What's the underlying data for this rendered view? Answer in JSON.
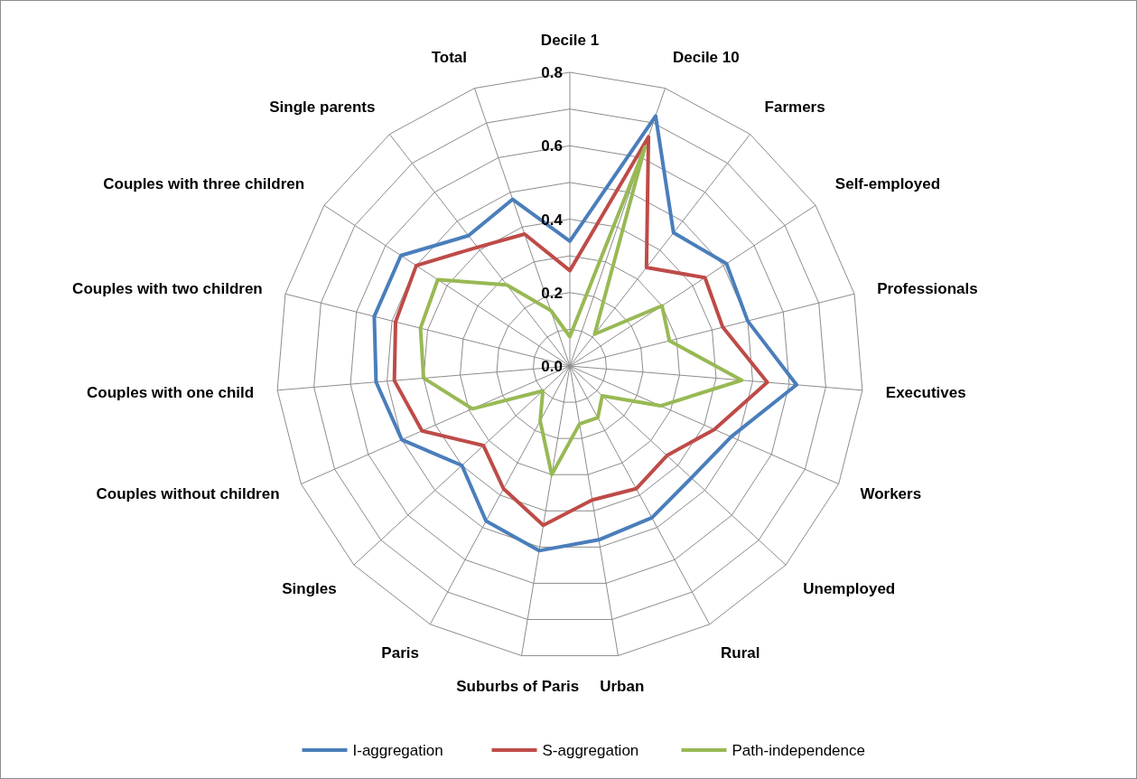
{
  "chart_data": {
    "type": "radar",
    "categories": [
      "Decile 1",
      "Decile 10",
      "Farmers",
      "Self-employed",
      "Professionals",
      "Executives",
      "Workers",
      "Unemployed",
      "Rural",
      "Urban",
      "Suburbs of Paris",
      "Paris",
      "Singles",
      "Couples without children",
      "Couples with one child",
      "Couples with two children",
      "Couples with three children",
      "Single parents",
      "Total"
    ],
    "series": [
      {
        "name": "I-aggregation",
        "color": "#4a7ebb",
        "values": [
          0.34,
          0.72,
          0.46,
          0.51,
          0.5,
          0.62,
          0.48,
          0.45,
          0.47,
          0.48,
          0.51,
          0.48,
          0.4,
          0.5,
          0.53,
          0.55,
          0.55,
          0.45,
          0.48
        ]
      },
      {
        "name": "S-aggregation",
        "color": "#be4b48",
        "values": [
          0.26,
          0.66,
          0.34,
          0.44,
          0.43,
          0.54,
          0.43,
          0.36,
          0.38,
          0.37,
          0.44,
          0.38,
          0.32,
          0.44,
          0.48,
          0.49,
          0.5,
          0.41,
          0.38
        ]
      },
      {
        "name": "Path-independence",
        "color": "#98b954",
        "values": [
          0.08,
          0.63,
          0.11,
          0.3,
          0.28,
          0.47,
          0.27,
          0.12,
          0.16,
          0.16,
          0.3,
          0.17,
          0.1,
          0.29,
          0.4,
          0.42,
          0.43,
          0.28,
          0.16
        ]
      }
    ],
    "ylim": [
      0,
      0.8
    ],
    "yticks": [
      {
        "value": 0,
        "label": "0.0"
      },
      {
        "value": 0.2,
        "label": "0.2"
      },
      {
        "value": 0.4,
        "label": "0.4"
      },
      {
        "value": 0.6,
        "label": "0.6"
      },
      {
        "value": 0.8,
        "label": "0.8"
      }
    ],
    "grid": true,
    "legend": "bottom",
    "marker": "none",
    "line_style": "solid"
  }
}
